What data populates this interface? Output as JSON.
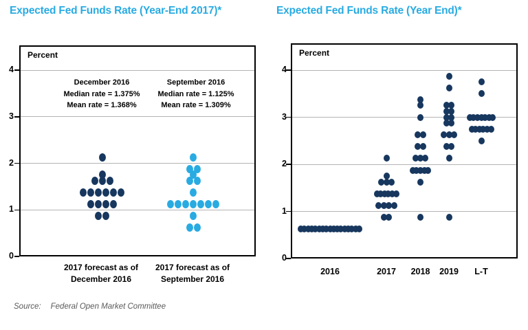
{
  "colors": {
    "title_blue": "#29ABE2",
    "dark_dot": "#17375E",
    "light_dot": "#29ABE2",
    "gridline": "#B3B3B3",
    "frame": "#000000",
    "text": "#000000",
    "source_gray": "#595959"
  },
  "left_chart": {
    "title": "Expected Fed Funds Rate (Year-End 2017)*",
    "axis_unit_label": "Percent",
    "y_ticks": [
      "4",
      "3",
      "2",
      "1",
      "0"
    ],
    "annotations": [
      {
        "lines": [
          "December 2016",
          "Median rate = 1.375%",
          "Mean rate = 1.368%"
        ]
      },
      {
        "lines": [
          "September 2016",
          "Median rate = 1.125%",
          "Mean rate = 1.309%"
        ]
      }
    ],
    "x_labels": [
      {
        "line1": "2017 forecast as of",
        "line2": "December 2016"
      },
      {
        "line1": "2017 forecast as of",
        "line2": "September 2016"
      }
    ]
  },
  "right_chart": {
    "title": "Expected Fed Funds Rate (Year End)*",
    "axis_unit_label": "Percent",
    "y_ticks": [
      "4",
      "3",
      "2",
      "1",
      "0"
    ],
    "x_ticks": [
      "2016",
      "2017",
      "2018",
      "2019",
      "L-T"
    ]
  },
  "source": {
    "label": "Source:",
    "text": "Federal Open Market Committee"
  },
  "chart_data": [
    {
      "type": "scatter",
      "title": "Expected Fed Funds Rate (Year-End 2017)*",
      "ylabel": "Percent",
      "ylim": [
        0,
        4.5
      ],
      "yticks": [
        0,
        1,
        2,
        3,
        4
      ],
      "grid": true,
      "series": [
        {
          "name": "2017 forecast as of December 2016",
          "color_key": "dark_dot",
          "median_pct": 1.375,
          "mean_pct": 1.368,
          "dots": [
            {
              "rate": 2.125,
              "count": 1
            },
            {
              "rate": 1.75,
              "count": 1
            },
            {
              "rate": 1.625,
              "count": 3
            },
            {
              "rate": 1.375,
              "count": 6
            },
            {
              "rate": 1.125,
              "count": 4
            },
            {
              "rate": 0.875,
              "count": 2
            }
          ]
        },
        {
          "name": "2017 forecast as of September 2016",
          "color_key": "light_dot",
          "median_pct": 1.125,
          "mean_pct": 1.309,
          "dots": [
            {
              "rate": 2.125,
              "count": 1
            },
            {
              "rate": 1.875,
              "count": 2
            },
            {
              "rate": 1.75,
              "count": 1
            },
            {
              "rate": 1.625,
              "count": 2
            },
            {
              "rate": 1.375,
              "count": 1
            },
            {
              "rate": 1.125,
              "count": 7
            },
            {
              "rate": 0.875,
              "count": 1
            },
            {
              "rate": 0.625,
              "count": 2
            }
          ]
        }
      ]
    },
    {
      "type": "scatter",
      "title": "Expected Fed Funds Rate (Year End)*",
      "ylabel": "Percent",
      "ylim": [
        0,
        4.5
      ],
      "yticks": [
        0,
        1,
        2,
        3,
        4
      ],
      "grid": true,
      "categories": [
        "2016",
        "2017",
        "2018",
        "2019",
        "L-T"
      ],
      "columns": [
        {
          "label": "2016",
          "dots": [
            {
              "rate": 0.625,
              "count": 17
            }
          ]
        },
        {
          "label": "2017",
          "dots": [
            {
              "rate": 2.125,
              "count": 1
            },
            {
              "rate": 1.75,
              "count": 1
            },
            {
              "rate": 1.625,
              "count": 3
            },
            {
              "rate": 1.375,
              "count": 6
            },
            {
              "rate": 1.125,
              "count": 4
            },
            {
              "rate": 0.875,
              "count": 2
            }
          ]
        },
        {
          "label": "2018",
          "dots": [
            {
              "rate": 3.375,
              "count": 1
            },
            {
              "rate": 3.25,
              "count": 1
            },
            {
              "rate": 3.0,
              "count": 1
            },
            {
              "rate": 2.625,
              "count": 2
            },
            {
              "rate": 2.375,
              "count": 2
            },
            {
              "rate": 2.125,
              "count": 3
            },
            {
              "rate": 1.875,
              "count": 5
            },
            {
              "rate": 1.625,
              "count": 1
            },
            {
              "rate": 0.875,
              "count": 1
            }
          ]
        },
        {
          "label": "2019",
          "dots": [
            {
              "rate": 3.875,
              "count": 1
            },
            {
              "rate": 3.625,
              "count": 1
            },
            {
              "rate": 3.25,
              "count": 2
            },
            {
              "rate": 3.125,
              "count": 2
            },
            {
              "rate": 3.0,
              "count": 2
            },
            {
              "rate": 2.875,
              "count": 2
            },
            {
              "rate": 2.625,
              "count": 3
            },
            {
              "rate": 2.375,
              "count": 2
            },
            {
              "rate": 2.125,
              "count": 1
            },
            {
              "rate": 0.875,
              "count": 1
            }
          ]
        },
        {
          "label": "L-T",
          "dots": [
            {
              "rate": 3.75,
              "count": 1
            },
            {
              "rate": 3.5,
              "count": 1
            },
            {
              "rate": 3.0,
              "count": 7
            },
            {
              "rate": 2.75,
              "count": 6
            },
            {
              "rate": 2.5,
              "count": 1
            }
          ]
        }
      ]
    }
  ]
}
